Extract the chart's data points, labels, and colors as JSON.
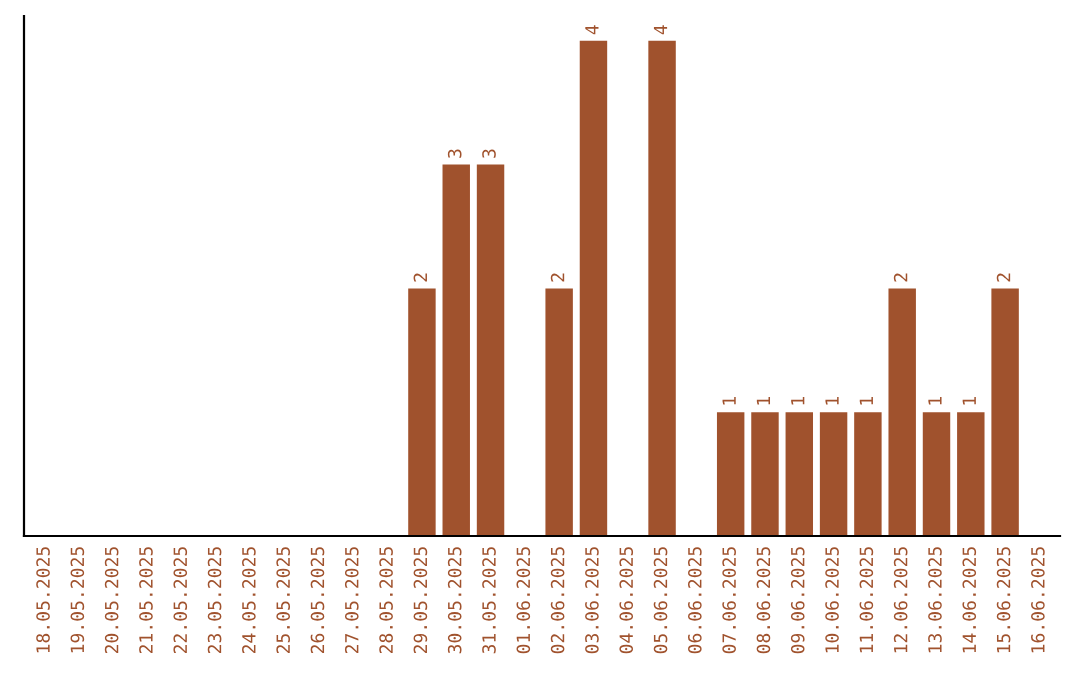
{
  "chart_data": {
    "type": "bar",
    "categories": [
      "18.05.2025",
      "19.05.2025",
      "20.05.2025",
      "21.05.2025",
      "22.05.2025",
      "23.05.2025",
      "24.05.2025",
      "25.05.2025",
      "26.05.2025",
      "27.05.2025",
      "28.05.2025",
      "29.05.2025",
      "30.05.2025",
      "31.05.2025",
      "01.06.2025",
      "02.06.2025",
      "03.06.2025",
      "04.06.2025",
      "05.06.2025",
      "06.06.2025",
      "07.06.2025",
      "08.06.2025",
      "09.06.2025",
      "10.06.2025",
      "11.06.2025",
      "12.06.2025",
      "13.06.2025",
      "14.06.2025",
      "15.06.2025",
      "16.06.2025"
    ],
    "values": [
      0,
      0,
      0,
      0,
      0,
      0,
      0,
      0,
      0,
      0,
      0,
      2,
      3,
      3,
      0,
      2,
      4,
      0,
      4,
      0,
      1,
      1,
      1,
      1,
      1,
      2,
      1,
      1,
      2,
      0
    ],
    "value_labels": [
      null,
      null,
      null,
      null,
      null,
      null,
      null,
      null,
      null,
      null,
      null,
      "2",
      "3",
      "3",
      null,
      "2",
      "4",
      null,
      "4",
      null,
      "1",
      "1",
      "1",
      "1",
      "1",
      "2",
      "1",
      "1",
      "2",
      null
    ],
    "color": "#a0522d",
    "tick_labels": "x",
    "grid": false,
    "legend": false
  }
}
